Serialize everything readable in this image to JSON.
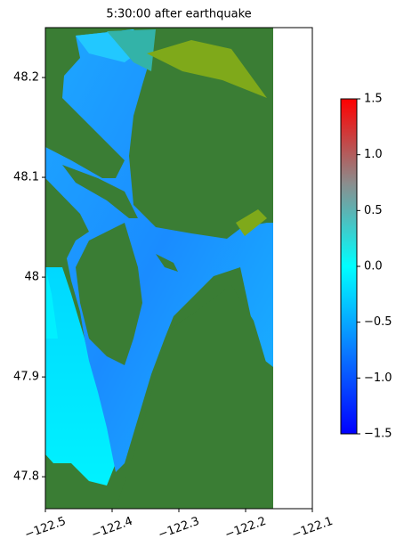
{
  "chart_data": {
    "type": "map",
    "title": "5:30:00 after earthquake",
    "xlim": [
      -122.5,
      -122.1
    ],
    "xticks": [
      {
        "value": -122.5,
        "label": "−122.5"
      },
      {
        "value": -122.4,
        "label": "−122.4"
      },
      {
        "value": -122.3,
        "label": "−122.3"
      },
      {
        "value": -122.2,
        "label": "−122.2"
      },
      {
        "value": -122.1,
        "label": "−122.1"
      }
    ],
    "ylim": [
      47.768,
      48.25
    ],
    "yticks": [
      47.8,
      47.9,
      48.0,
      48.1,
      48.2
    ],
    "colorbar": {
      "lim": [
        -1.5,
        1.5
      ],
      "ticks": [
        {
          "value": 1.5,
          "label": "1.5"
        },
        {
          "value": 1.0,
          "label": "1.0"
        },
        {
          "value": 0.5,
          "label": "0.5"
        },
        {
          "value": 0.0,
          "label": "0.0"
        },
        {
          "value": -0.5,
          "label": "−0.5"
        },
        {
          "value": -1.0,
          "label": "−1.0"
        },
        {
          "value": -1.5,
          "label": "−1.5"
        }
      ],
      "colors": [
        "#0000ff",
        "#0a7cff",
        "#00ffff",
        "#8c8c8c",
        "#ff0000"
      ]
    }
  }
}
